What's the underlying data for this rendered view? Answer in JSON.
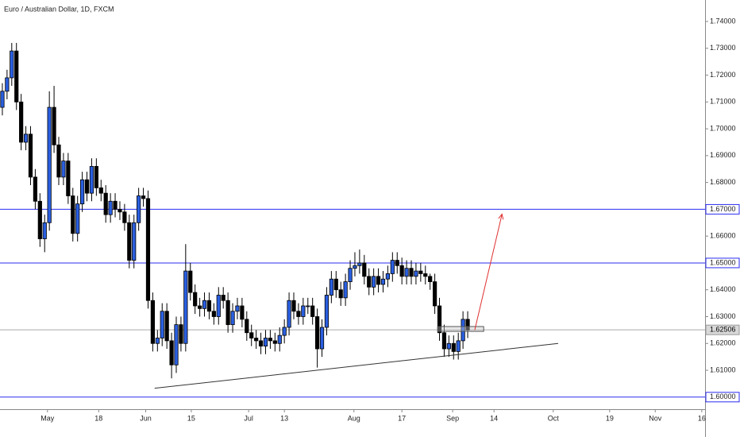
{
  "chart_data": {
    "type": "candlestick",
    "title": "Euro / Australian Dollar, 1D, FXCM",
    "up_color": "#2a5fe0",
    "down_color": "#000000",
    "open": [
      1.708,
      1.714,
      1.719,
      1.729,
      1.71,
      1.695,
      1.698,
      1.682,
      1.673,
      1.659,
      1.665,
      1.708,
      1.694,
      1.682,
      1.688,
      1.675,
      1.661,
      1.672,
      1.681,
      1.676,
      1.686,
      1.678,
      1.676,
      1.668,
      1.673,
      1.67,
      1.669,
      1.665,
      1.651,
      1.665,
      1.675,
      1.674,
      1.636,
      1.62,
      1.622,
      1.632,
      1.621,
      1.612,
      1.627,
      1.62,
      1.647,
      1.639,
      1.634,
      1.633,
      1.636,
      1.632,
      1.63,
      1.638,
      1.636,
      1.627,
      1.632,
      1.634,
      1.629,
      1.624,
      1.622,
      1.621,
      1.619,
      1.622,
      1.621,
      1.62,
      1.623,
      1.626,
      1.636,
      1.632,
      1.63,
      1.634,
      1.634,
      1.63,
      1.618,
      1.626,
      1.638,
      1.644,
      1.64,
      1.637,
      1.643,
      1.648,
      1.649,
      1.65,
      1.645,
      1.641,
      1.645,
      1.642,
      1.644,
      1.646,
      1.651,
      1.649,
      1.645,
      1.648,
      1.645,
      1.647,
      1.646,
      1.645,
      1.643,
      1.634,
      1.624,
      1.618,
      1.62,
      1.617,
      1.621,
      1.629
    ],
    "high": [
      1.717,
      1.722,
      1.732,
      1.732,
      1.713,
      1.701,
      1.701,
      1.685,
      1.676,
      1.668,
      1.714,
      1.716,
      1.697,
      1.691,
      1.691,
      1.678,
      1.675,
      1.684,
      1.684,
      1.689,
      1.689,
      1.681,
      1.679,
      1.676,
      1.676,
      1.673,
      1.672,
      1.668,
      1.668,
      1.678,
      1.678,
      1.677,
      1.639,
      1.625,
      1.635,
      1.635,
      1.624,
      1.63,
      1.63,
      1.657,
      1.65,
      1.642,
      1.637,
      1.639,
      1.639,
      1.635,
      1.641,
      1.641,
      1.639,
      1.635,
      1.637,
      1.637,
      1.632,
      1.627,
      1.625,
      1.624,
      1.625,
      1.625,
      1.624,
      1.626,
      1.629,
      1.639,
      1.639,
      1.635,
      1.637,
      1.637,
      1.637,
      1.633,
      1.629,
      1.641,
      1.647,
      1.647,
      1.643,
      1.646,
      1.651,
      1.654,
      1.655,
      1.653,
      1.648,
      1.648,
      1.648,
      1.647,
      1.649,
      1.654,
      1.654,
      1.652,
      1.651,
      1.651,
      1.65,
      1.65,
      1.649,
      1.646,
      1.646,
      1.637,
      1.627,
      1.623,
      1.623,
      1.624,
      1.632,
      1.632
    ],
    "low": [
      1.705,
      1.711,
      1.716,
      1.707,
      1.692,
      1.692,
      1.679,
      1.67,
      1.656,
      1.654,
      1.662,
      1.691,
      1.679,
      1.679,
      1.672,
      1.658,
      1.658,
      1.669,
      1.673,
      1.673,
      1.675,
      1.673,
      1.665,
      1.665,
      1.667,
      1.666,
      1.662,
      1.648,
      1.648,
      1.662,
      1.671,
      1.633,
      1.617,
      1.617,
      1.619,
      1.618,
      1.607,
      1.609,
      1.617,
      1.617,
      1.636,
      1.631,
      1.63,
      1.63,
      1.629,
      1.627,
      1.627,
      1.633,
      1.624,
      1.624,
      1.629,
      1.626,
      1.621,
      1.619,
      1.618,
      1.616,
      1.616,
      1.618,
      1.617,
      1.617,
      1.62,
      1.623,
      1.629,
      1.627,
      1.627,
      1.631,
      1.627,
      1.611,
      1.615,
      1.623,
      1.635,
      1.637,
      1.634,
      1.634,
      1.64,
      1.645,
      1.646,
      1.642,
      1.638,
      1.638,
      1.639,
      1.639,
      1.641,
      1.643,
      1.646,
      1.642,
      1.642,
      1.642,
      1.642,
      1.643,
      1.642,
      1.64,
      1.631,
      1.621,
      1.615,
      1.615,
      1.614,
      1.614,
      1.618,
      1.622
    ],
    "close": [
      1.714,
      1.719,
      1.729,
      1.71,
      1.695,
      1.698,
      1.682,
      1.673,
      1.659,
      1.665,
      1.708,
      1.694,
      1.682,
      1.688,
      1.675,
      1.661,
      1.672,
      1.681,
      1.676,
      1.686,
      1.678,
      1.676,
      1.668,
      1.673,
      1.67,
      1.669,
      1.665,
      1.651,
      1.665,
      1.675,
      1.674,
      1.636,
      1.62,
      1.622,
      1.632,
      1.621,
      1.612,
      1.627,
      1.62,
      1.647,
      1.639,
      1.634,
      1.633,
      1.636,
      1.632,
      1.63,
      1.638,
      1.636,
      1.627,
      1.632,
      1.634,
      1.629,
      1.624,
      1.622,
      1.621,
      1.619,
      1.622,
      1.621,
      1.62,
      1.623,
      1.626,
      1.636,
      1.632,
      1.63,
      1.634,
      1.634,
      1.63,
      1.618,
      1.626,
      1.638,
      1.644,
      1.64,
      1.637,
      1.643,
      1.648,
      1.649,
      1.65,
      1.645,
      1.641,
      1.645,
      1.642,
      1.644,
      1.646,
      1.651,
      1.649,
      1.645,
      1.648,
      1.645,
      1.647,
      1.646,
      1.645,
      1.643,
      1.634,
      1.624,
      1.618,
      1.62,
      1.617,
      1.621,
      1.629,
      1.625
    ],
    "xlim": [
      0,
      150
    ],
    "xticks": [
      {
        "value": 10.1,
        "label": "May"
      },
      {
        "value": 21,
        "label": "18"
      },
      {
        "value": 31,
        "label": "Jun"
      },
      {
        "value": 40.7,
        "label": "15"
      },
      {
        "value": 52.9,
        "label": "Jul"
      },
      {
        "value": 60.5,
        "label": "13"
      },
      {
        "value": 75.3,
        "label": "Aug"
      },
      {
        "value": 85.5,
        "label": "17"
      },
      {
        "value": 96.3,
        "label": "Sep"
      },
      {
        "value": 105.1,
        "label": "14"
      },
      {
        "value": 117.7,
        "label": "Oct"
      },
      {
        "value": 129.7,
        "label": "19"
      },
      {
        "value": 139.4,
        "label": "Nov"
      },
      {
        "value": 149.3,
        "label": "16"
      }
    ],
    "ylim": [
      1.5955,
      1.748
    ],
    "yticks": [
      {
        "value": 1.61,
        "label": "1.61000"
      },
      {
        "value": 1.62,
        "label": "1.62000"
      },
      {
        "value": 1.63,
        "label": "1.63000"
      },
      {
        "value": 1.64,
        "label": "1.64000"
      },
      {
        "value": 1.66,
        "label": "1.66000"
      },
      {
        "value": 1.68,
        "label": "1.68000"
      },
      {
        "value": 1.69,
        "label": "1.69000"
      },
      {
        "value": 1.7,
        "label": "1.70000"
      },
      {
        "value": 1.71,
        "label": "1.71000"
      },
      {
        "value": 1.72,
        "label": "1.72000"
      },
      {
        "value": 1.73,
        "label": "1.73000"
      },
      {
        "value": 1.74,
        "label": "1.74000"
      }
    ],
    "horizontal_lines": [
      {
        "value": 1.67,
        "label": "1.67000"
      },
      {
        "value": 1.65,
        "label": "1.65000"
      },
      {
        "value": 1.6,
        "label": "1.60000"
      }
    ],
    "line_color": "#2b2bf0",
    "last_price": {
      "value": 1.62506,
      "label": "1.62506"
    },
    "trendline": {
      "x": [
        32.9,
        118.75
      ],
      "y": [
        1.6033,
        1.62
      ]
    },
    "box": {
      "x": [
        93.1,
        102.9
      ],
      "y": [
        1.6245,
        1.6263
      ]
    },
    "arrow": {
      "x": [
        101,
        106.8
      ],
      "y": [
        1.625,
        1.6682
      ],
      "color": "#e03030"
    }
  }
}
